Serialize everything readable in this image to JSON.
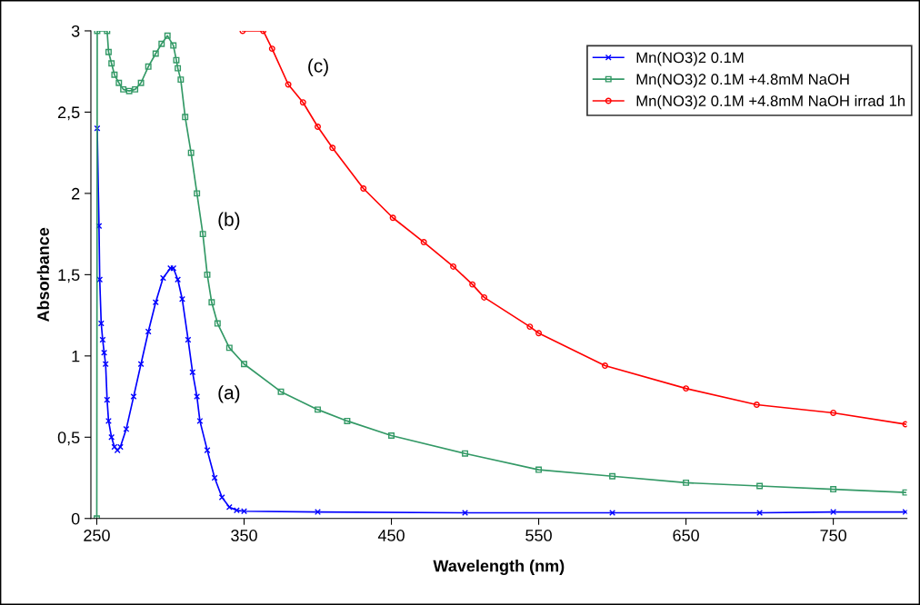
{
  "chart_data": {
    "type": "line",
    "xlabel": "Wavelength (nm)",
    "ylabel": "Absorbance",
    "xlim": [
      246,
      800
    ],
    "xticks": [
      250,
      350,
      450,
      550,
      650,
      750
    ],
    "ylim": [
      0,
      3
    ],
    "yticks": [
      0,
      {
        "value": 0.5,
        "label": "0,5"
      },
      1,
      {
        "value": 1.5,
        "label": "1,5"
      },
      2,
      {
        "value": 2.5,
        "label": "2,5"
      },
      3
    ],
    "grid": false,
    "legend": "top right",
    "line_style": "solid",
    "series": [
      {
        "name": "Mn(NO3)2 0.1M",
        "color": "#0000ff",
        "marker": "cross",
        "x": [
          250.3,
          251.5,
          252,
          253,
          254,
          255,
          256,
          257,
          258,
          260,
          262,
          264,
          266,
          270,
          275,
          280,
          285,
          290,
          295,
          300,
          302,
          305,
          308,
          312,
          315,
          318,
          320,
          325,
          330,
          335,
          340,
          345,
          350,
          400,
          500,
          600,
          700,
          750,
          799
        ],
        "values": [
          2.4,
          1.8,
          1.47,
          1.2,
          1.1,
          1.02,
          0.95,
          0.73,
          0.6,
          0.5,
          0.44,
          0.42,
          0.44,
          0.55,
          0.75,
          0.95,
          1.15,
          1.33,
          1.48,
          1.54,
          1.54,
          1.47,
          1.35,
          1.1,
          0.9,
          0.75,
          0.6,
          0.42,
          0.25,
          0.13,
          0.07,
          0.05,
          0.045,
          0.04,
          0.035,
          0.035,
          0.035,
          0.04,
          0.04
        ]
      },
      {
        "name": "Mn(NO3)2 0.1M +4.8mM NaOH",
        "color": "#339966",
        "marker": "square",
        "x": [
          250,
          250.3,
          257,
          258,
          260,
          262,
          265,
          268,
          272,
          276,
          280,
          285,
          290,
          294,
          298,
          302,
          304,
          305,
          307,
          310,
          314,
          318,
          322,
          325,
          328,
          332,
          340,
          350,
          375,
          400,
          420,
          450,
          500,
          550,
          600,
          650,
          700,
          750,
          799
        ],
        "values": [
          0,
          3.0,
          3.0,
          2.87,
          2.8,
          2.73,
          2.68,
          2.64,
          2.63,
          2.64,
          2.68,
          2.78,
          2.86,
          2.92,
          2.97,
          2.91,
          2.82,
          2.77,
          2.7,
          2.47,
          2.25,
          2.0,
          1.75,
          1.5,
          1.33,
          1.2,
          1.05,
          0.95,
          0.78,
          0.67,
          0.6,
          0.51,
          0.4,
          0.3,
          0.26,
          0.22,
          0.2,
          0.18,
          0.16
        ]
      },
      {
        "name": "Mn(NO3)2 0.1M +4.8mM NaOH irrad 1h",
        "color": "#ff0000",
        "marker": "circle",
        "x": [
          349,
          363,
          369,
          380,
          390,
          400,
          410,
          431,
          451,
          472,
          492,
          505,
          513,
          544,
          550,
          595,
          650,
          698,
          750,
          799
        ],
        "values": [
          3.0,
          3.0,
          2.89,
          2.67,
          2.56,
          2.41,
          2.28,
          2.03,
          1.85,
          1.7,
          1.55,
          1.44,
          1.36,
          1.18,
          1.14,
          0.94,
          0.8,
          0.7,
          0.65,
          0.58
        ]
      }
    ],
    "annotations": [
      "(a)",
      "(b)",
      "(c)"
    ]
  }
}
